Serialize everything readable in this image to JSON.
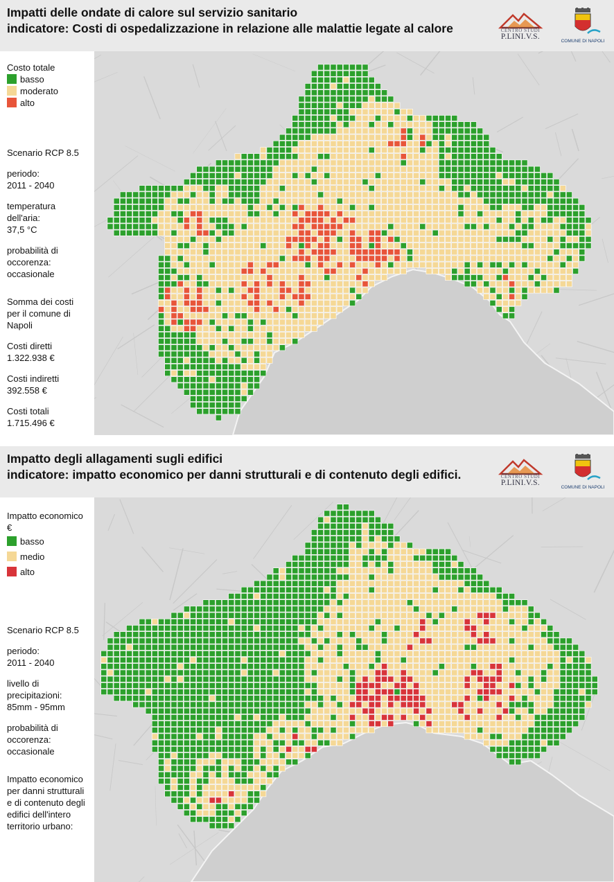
{
  "heat": {
    "title_line1": "Impatti delle ondate di calore sul servizio sanitario",
    "title_line2": "indicatore: Costi di ospedalizzazione in relazione alle malattie legate al calore",
    "legend_title": "Costo totale",
    "legend": [
      {
        "label": "basso",
        "color": "#2ca02c"
      },
      {
        "label": "moderato",
        "color": "#f5d896"
      },
      {
        "label": "alto",
        "color": "#e8553a"
      }
    ],
    "scenario": "Scenario RCP 8.5",
    "period_label": "periodo:",
    "period_value": "2011 - 2040",
    "temp_label_1": "temperatura",
    "temp_label_2": "dell'aria:",
    "temp_value": "37,5 °C",
    "prob_label_1": "probabilità di",
    "prob_label_2": "occorenza:",
    "prob_value": "occasionale",
    "sum_label_1": "Somma dei costi",
    "sum_label_2": "per il comune di",
    "sum_label_3": "Napoli",
    "direct_label": "Costi diretti",
    "direct_value": "1.322.938 €",
    "indirect_label": "Costi indiretti",
    "indirect_value": "392.558 €",
    "total_label": "Costi totali",
    "total_value": "1.715.496 €"
  },
  "flood": {
    "title_line1": "Impatto degli allagamenti sugli edifici",
    "title_line2": "indicatore: impatto economico per danni strutturali e di contenuto degli edifici.",
    "legend_title_1": "Impatto economico",
    "legend_title_2": "€",
    "legend": [
      {
        "label": "basso",
        "color": "#2ca02c"
      },
      {
        "label": "medio",
        "color": "#f5d896"
      },
      {
        "label": "alto",
        "color": "#d8343a"
      }
    ],
    "scenario": "Scenario RCP 8.5",
    "period_label": "periodo:",
    "period_value": "2011 - 2040",
    "precip_label_1": "livello di",
    "precip_label_2": "precipitazioni:",
    "precip_value": "85mm - 95mm",
    "prob_label_1": "probabilità di",
    "prob_label_2": "occorenza:",
    "prob_value": "occasionale",
    "desc_1": "Impatto economico",
    "desc_2": "per danni strutturali",
    "desc_3": "e di contenuto degli",
    "desc_4": "edifici dell'intero",
    "desc_5": "territorio urbano:"
  },
  "logos": {
    "plinivs_small": "CENTRO STUDI",
    "plinivs_big": "P.LINI.V.S.",
    "napoli": "COMUNE DI NAPOLI"
  },
  "colors": {
    "header_bg": "#eaeaea",
    "basemap": "#d6d6d6",
    "sea": "#cfcfcf"
  }
}
